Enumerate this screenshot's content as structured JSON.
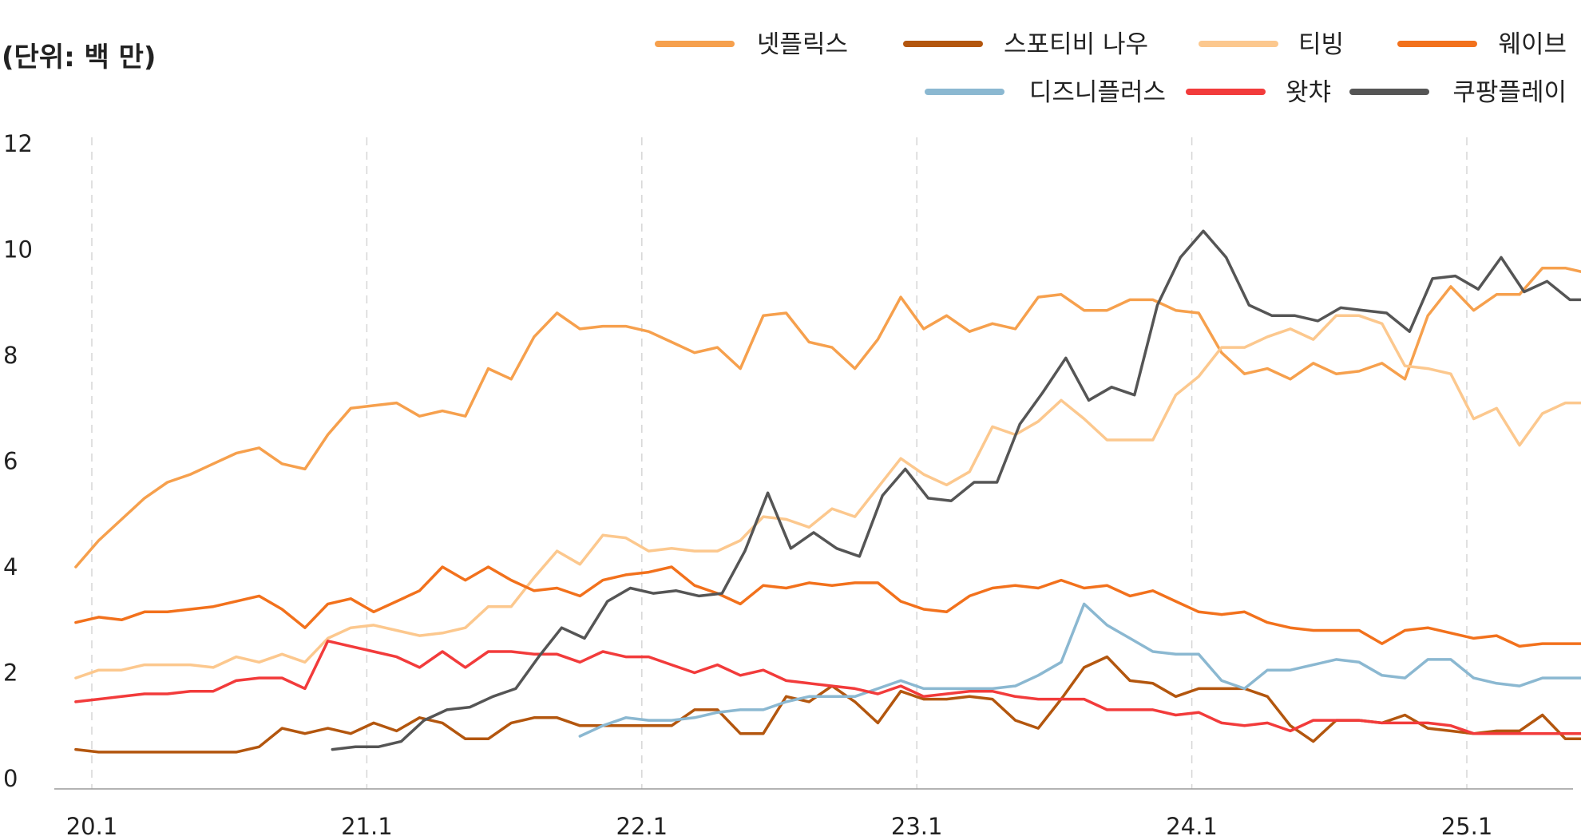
{
  "chart_data": {
    "type": "line",
    "title": "",
    "unit_label": "(단위: 백 만)",
    "xlabel": "",
    "ylabel": "",
    "ylim": [
      0,
      12
    ],
    "yticks": [
      0,
      2,
      4,
      6,
      8,
      10,
      12
    ],
    "grid": "vertical dashed at year starts",
    "legend_position": "top-right",
    "x_start": "2020-01",
    "x_end": "2025-08",
    "xticks": [
      {
        "label": "20.1",
        "index": 0
      },
      {
        "label": "21.1",
        "index": 12
      },
      {
        "label": "22.1",
        "index": 24
      },
      {
        "label": "23.1",
        "index": 36
      },
      {
        "label": "24.1",
        "index": 48
      },
      {
        "label": "25.1",
        "index": 60
      }
    ],
    "series": [
      {
        "name": "넷플릭스",
        "color": "#F6A04D",
        "start_index": -0.7,
        "values": [
          4.0,
          4.5,
          4.9,
          5.3,
          5.6,
          5.75,
          5.95,
          6.15,
          6.25,
          5.95,
          5.85,
          6.5,
          7.0,
          7.05,
          7.1,
          6.85,
          6.95,
          6.85,
          7.75,
          7.55,
          8.35,
          8.8,
          8.5,
          8.55,
          8.55,
          8.45,
          8.25,
          8.05,
          8.15,
          7.75,
          8.75,
          8.8,
          8.25,
          8.15,
          7.75,
          8.3,
          9.1,
          8.5,
          8.75,
          8.45,
          8.6,
          8.5,
          9.1,
          9.15,
          8.85,
          8.85,
          9.05,
          9.05,
          8.85,
          8.8,
          8.05,
          7.65,
          7.75,
          7.55,
          7.85,
          7.65,
          7.7,
          7.85,
          7.55,
          8.75,
          9.3,
          8.85,
          9.15,
          9.15,
          9.65,
          9.65,
          9.55
        ]
      },
      {
        "name": "스포티비 나우",
        "color": "#B3560E",
        "start_index": -0.7,
        "values": [
          0.55,
          0.5,
          0.5,
          0.5,
          0.5,
          0.5,
          0.5,
          0.5,
          0.6,
          0.95,
          0.85,
          0.95,
          0.85,
          1.05,
          0.9,
          1.15,
          1.05,
          0.75,
          0.75,
          1.05,
          1.15,
          1.15,
          1.0,
          1.0,
          1.0,
          1.0,
          1.0,
          1.3,
          1.3,
          0.85,
          0.85,
          1.55,
          1.45,
          1.75,
          1.45,
          1.05,
          1.65,
          1.5,
          1.5,
          1.55,
          1.5,
          1.1,
          0.95,
          1.5,
          2.1,
          2.3,
          1.85,
          1.8,
          1.55,
          1.7,
          1.7,
          1.7,
          1.55,
          1.0,
          0.7,
          1.1,
          1.1,
          1.05,
          1.2,
          0.95,
          0.9,
          0.85,
          0.9,
          0.9,
          1.2,
          0.75,
          0.75
        ]
      },
      {
        "name": "티빙",
        "color": "#FCC88E",
        "start_index": -0.7,
        "values": [
          1.9,
          2.05,
          2.05,
          2.15,
          2.15,
          2.15,
          2.1,
          2.3,
          2.2,
          2.35,
          2.2,
          2.65,
          2.85,
          2.9,
          2.8,
          2.7,
          2.75,
          2.85,
          3.25,
          3.25,
          3.8,
          4.3,
          4.05,
          4.6,
          4.55,
          4.3,
          4.35,
          4.3,
          4.3,
          4.5,
          4.95,
          4.9,
          4.75,
          5.1,
          4.95,
          5.5,
          6.05,
          5.75,
          5.55,
          5.8,
          6.65,
          6.5,
          6.75,
          7.15,
          6.8,
          6.4,
          6.4,
          6.4,
          7.25,
          7.6,
          8.15,
          8.15,
          8.35,
          8.5,
          8.3,
          8.75,
          8.75,
          8.6,
          7.8,
          7.75,
          7.65,
          6.8,
          7.0,
          6.3,
          6.9,
          7.1,
          7.1
        ]
      },
      {
        "name": "웨이브",
        "color": "#F2711C",
        "start_index": -0.7,
        "values": [
          2.95,
          3.05,
          3.0,
          3.15,
          3.15,
          3.2,
          3.25,
          3.35,
          3.45,
          3.2,
          2.85,
          3.3,
          3.4,
          3.15,
          3.35,
          3.55,
          4.0,
          3.75,
          4.0,
          3.75,
          3.55,
          3.6,
          3.45,
          3.75,
          3.85,
          3.9,
          4.0,
          3.65,
          3.5,
          3.3,
          3.65,
          3.6,
          3.7,
          3.65,
          3.7,
          3.7,
          3.35,
          3.2,
          3.15,
          3.45,
          3.6,
          3.65,
          3.6,
          3.75,
          3.6,
          3.65,
          3.45,
          3.55,
          3.35,
          3.15,
          3.1,
          3.15,
          2.95,
          2.85,
          2.8,
          2.8,
          2.8,
          2.55,
          2.8,
          2.85,
          2.75,
          2.65,
          2.7,
          2.5,
          2.55,
          2.55,
          2.55
        ]
      },
      {
        "name": "디즈니플러스",
        "color": "#8BB8D1",
        "start_index": 21.3,
        "values": [
          0.8,
          1.0,
          1.15,
          1.1,
          1.1,
          1.15,
          1.25,
          1.3,
          1.3,
          1.45,
          1.55,
          1.55,
          1.55,
          1.7,
          1.85,
          1.7,
          1.7,
          1.7,
          1.7,
          1.75,
          1.95,
          2.2,
          3.3,
          2.9,
          2.65,
          2.4,
          2.35,
          2.35,
          1.85,
          1.7,
          2.05,
          2.05,
          2.15,
          2.25,
          2.2,
          1.95,
          1.9,
          2.25,
          2.25,
          1.9,
          1.8,
          1.75,
          1.9,
          1.9,
          1.9
        ]
      },
      {
        "name": "왓챠",
        "color": "#F23B3B",
        "start_index": -0.7,
        "values": [
          1.45,
          1.5,
          1.55,
          1.6,
          1.6,
          1.65,
          1.65,
          1.85,
          1.9,
          1.9,
          1.7,
          2.6,
          2.5,
          2.4,
          2.3,
          2.1,
          2.4,
          2.1,
          2.4,
          2.4,
          2.35,
          2.35,
          2.2,
          2.4,
          2.3,
          2.3,
          2.15,
          2.0,
          2.15,
          1.95,
          2.05,
          1.85,
          1.8,
          1.75,
          1.7,
          1.6,
          1.75,
          1.55,
          1.6,
          1.65,
          1.65,
          1.55,
          1.5,
          1.5,
          1.5,
          1.3,
          1.3,
          1.3,
          1.2,
          1.25,
          1.05,
          1.0,
          1.05,
          0.9,
          1.1,
          1.1,
          1.1,
          1.05,
          1.05,
          1.05,
          1.0,
          0.85,
          0.85,
          0.85,
          0.85,
          0.85,
          0.85
        ]
      },
      {
        "name": "쿠팡플레이",
        "color": "#555555",
        "start_index": 10.5,
        "values": [
          0.55,
          0.6,
          0.6,
          0.7,
          1.1,
          1.3,
          1.35,
          1.55,
          1.7,
          2.3,
          2.85,
          2.65,
          3.35,
          3.6,
          3.5,
          3.55,
          3.45,
          3.5,
          4.3,
          5.4,
          4.35,
          4.65,
          4.35,
          4.2,
          5.35,
          5.85,
          5.3,
          5.25,
          5.6,
          5.6,
          6.7,
          7.3,
          7.95,
          7.15,
          7.4,
          7.25,
          8.95,
          9.85,
          10.35,
          9.85,
          8.95,
          8.75,
          8.75,
          8.65,
          8.9,
          8.85,
          8.8,
          8.45,
          9.45,
          9.5,
          9.25,
          9.85,
          9.2,
          9.4,
          9.05,
          9.05,
          9.05
        ]
      }
    ]
  },
  "legend": {
    "row1": [
      "넷플릭스",
      "스포티비 나우",
      "티빙",
      "웨이브"
    ],
    "row2": [
      "디즈니플러스",
      "왓챠",
      "쿠팡플레이"
    ]
  }
}
